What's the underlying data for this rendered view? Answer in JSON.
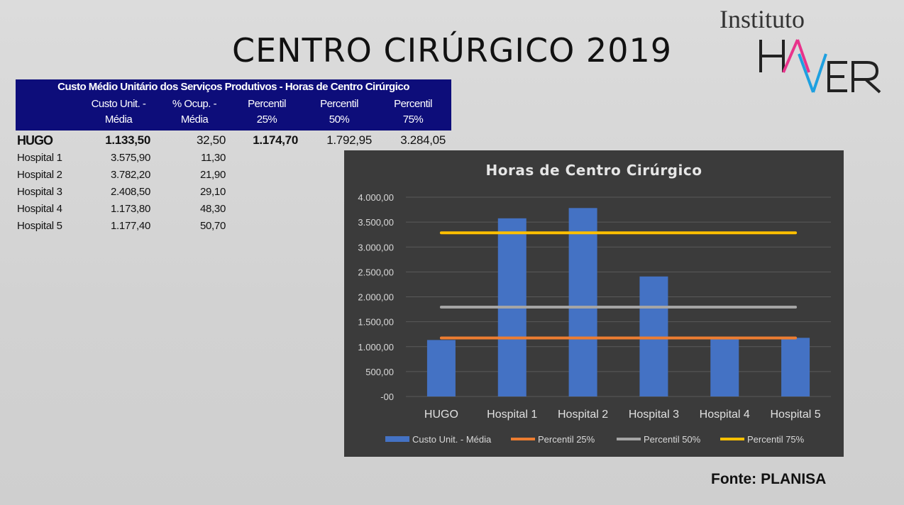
{
  "title": "CENTRO CIRÚRGICO 2019",
  "logo": {
    "top_text": "Instituto",
    "word": "HAVER"
  },
  "table": {
    "caption": "Custo Médio Unitário dos Serviços Produtivos - Horas de Centro Cirúrgico",
    "headers": [
      [
        "Custo Unit. -",
        "Média"
      ],
      [
        "% Ocup. -",
        "Média"
      ],
      [
        "Percentil",
        "25%"
      ],
      [
        "Percentil",
        "50%"
      ],
      [
        "Percentil",
        "75%"
      ]
    ],
    "rows": [
      {
        "name": "HUGO",
        "custo": "1.133,50",
        "ocup": "32,50",
        "p25": "1.174,70",
        "p50": "1.792,95",
        "p75": "3.284,05"
      },
      {
        "name": "Hospital 1",
        "custo": "3.575,90",
        "ocup": "11,30"
      },
      {
        "name": "Hospital 2",
        "custo": "3.782,20",
        "ocup": "21,90"
      },
      {
        "name": "Hospital 3",
        "custo": "2.408,50",
        "ocup": "29,10"
      },
      {
        "name": "Hospital 4",
        "custo": "1.173,80",
        "ocup": "48,30"
      },
      {
        "name": "Hospital 5",
        "custo": "1.177,40",
        "ocup": "50,70"
      }
    ]
  },
  "chart_data": {
    "type": "bar",
    "title": "Horas de Centro Cirúrgico",
    "categories": [
      "HUGO",
      "Hospital 1",
      "Hospital 2",
      "Hospital 3",
      "Hospital 4",
      "Hospital 5"
    ],
    "series": [
      {
        "name": "Custo Unit. - Média",
        "kind": "bar",
        "color": "#4472c4",
        "values": [
          1133.5,
          3575.9,
          3782.2,
          2408.5,
          1173.8,
          1177.4
        ]
      },
      {
        "name": "Percentil 25%",
        "kind": "line",
        "color": "#ed7d31",
        "values": [
          1174.7,
          1174.7,
          1174.7,
          1174.7,
          1174.7,
          1174.7
        ]
      },
      {
        "name": "Percentil 50%",
        "kind": "line",
        "color": "#a5a5a5",
        "values": [
          1792.95,
          1792.95,
          1792.95,
          1792.95,
          1792.95,
          1792.95
        ]
      },
      {
        "name": "Percentil 75%",
        "kind": "line",
        "color": "#ffc000",
        "values": [
          3284.05,
          3284.05,
          3284.05,
          3284.05,
          3284.05,
          3284.05
        ]
      }
    ],
    "yticks": [
      "-00",
      "500,00",
      "1.000,00",
      "1.500,00",
      "2.000,00",
      "2.500,00",
      "3.000,00",
      "3.500,00",
      "4.000,00"
    ],
    "ylim": [
      0,
      4000
    ],
    "grid": true,
    "legend": "bottom"
  },
  "source": {
    "label": "Fonte:",
    "value": "PLANISA"
  }
}
